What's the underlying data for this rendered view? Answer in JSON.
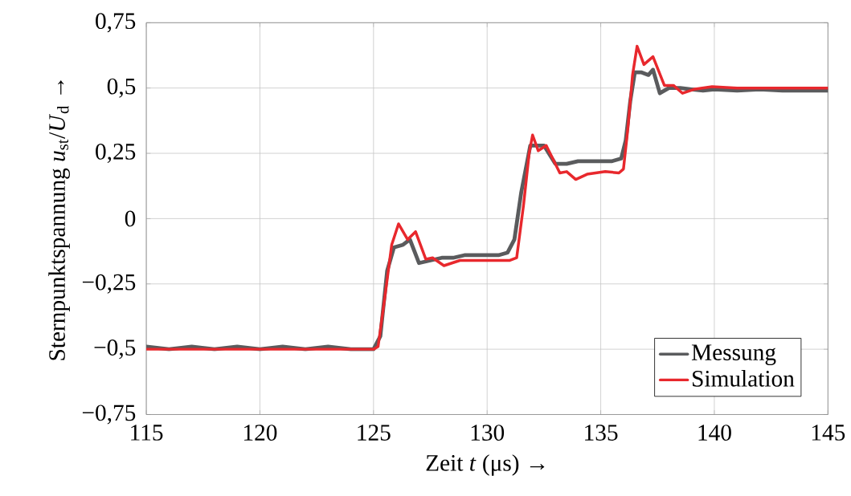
{
  "chart_data": {
    "type": "line",
    "xlabel": "Zeit *t* (μs) →",
    "ylabel": "Sternpunktspannung *u*$_{st}$/*U*$_{d}$ →",
    "xlim": [
      115,
      145
    ],
    "xticks": [
      115,
      120,
      125,
      130,
      135,
      140,
      145
    ],
    "ylim": [
      -0.75,
      0.75
    ],
    "yticks": [
      {
        "value": -0.75,
        "label": "−0,75"
      },
      {
        "value": -0.5,
        "label": "−0,5"
      },
      {
        "value": -0.25,
        "label": "−0,25"
      },
      {
        "value": 0,
        "label": "0"
      },
      {
        "value": 0.25,
        "label": "0,25"
      },
      {
        "value": 0.5,
        "label": "0,5"
      },
      {
        "value": 0.75,
        "label": "0,75"
      }
    ],
    "grid": true,
    "legend": "bottom right",
    "series": [
      {
        "name": "Messung",
        "color": "#5a5b5d",
        "x": [
          115,
          116,
          117,
          118,
          119,
          120,
          121,
          122,
          123,
          124,
          125,
          125.3,
          125.6,
          125.9,
          126.3,
          126.6,
          127.0,
          127.5,
          128,
          128.5,
          129,
          129.5,
          130,
          130.5,
          130.9,
          131.2,
          131.5,
          131.9,
          132.5,
          133.0,
          133.5,
          134,
          134.5,
          135,
          135.5,
          135.9,
          136.1,
          136.3,
          136.5,
          136.8,
          137.1,
          137.3,
          137.6,
          138,
          138.5,
          139,
          139.5,
          140,
          141,
          142,
          143,
          144,
          145
        ],
        "values": [
          -0.49,
          -0.5,
          -0.49,
          -0.5,
          -0.49,
          -0.5,
          -0.49,
          -0.5,
          -0.49,
          -0.5,
          -0.5,
          -0.45,
          -0.2,
          -0.11,
          -0.1,
          -0.08,
          -0.17,
          -0.16,
          -0.15,
          -0.15,
          -0.14,
          -0.14,
          -0.14,
          -0.14,
          -0.13,
          -0.08,
          0.1,
          0.28,
          0.28,
          0.21,
          0.21,
          0.22,
          0.22,
          0.22,
          0.22,
          0.23,
          0.3,
          0.45,
          0.56,
          0.56,
          0.55,
          0.57,
          0.48,
          0.5,
          0.5,
          0.495,
          0.49,
          0.495,
          0.49,
          0.495,
          0.49,
          0.49,
          0.49
        ]
      },
      {
        "name": "Simulation",
        "color": "#e8282d",
        "x": [
          115,
          120,
          125,
          125.2,
          125.5,
          125.8,
          126.1,
          126.5,
          126.85,
          127.3,
          127.6,
          128.1,
          128.8,
          130,
          131,
          131.3,
          131.6,
          131.85,
          132.0,
          132.25,
          132.6,
          133.2,
          133.5,
          133.9,
          134.4,
          135.2,
          135.8,
          136.0,
          136.2,
          136.4,
          136.6,
          136.9,
          137.3,
          137.8,
          138.2,
          138.6,
          139.1,
          139.9,
          141,
          145
        ],
        "values": [
          -0.5,
          -0.5,
          -0.5,
          -0.49,
          -0.3,
          -0.1,
          -0.02,
          -0.08,
          -0.05,
          -0.155,
          -0.15,
          -0.18,
          -0.16,
          -0.16,
          -0.16,
          -0.15,
          0.05,
          0.25,
          0.32,
          0.26,
          0.28,
          0.175,
          0.18,
          0.15,
          0.17,
          0.18,
          0.175,
          0.19,
          0.35,
          0.55,
          0.66,
          0.59,
          0.62,
          0.51,
          0.51,
          0.48,
          0.495,
          0.505,
          0.5,
          0.5
        ]
      }
    ]
  }
}
